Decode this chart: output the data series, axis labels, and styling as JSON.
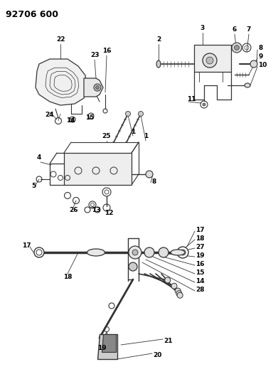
{
  "title": "92706 600",
  "bg_color": "#ffffff",
  "line_color": "#333333",
  "text_color": "#000000",
  "fig_width": 3.91,
  "fig_height": 5.33,
  "dpi": 100,
  "label_fontsize": 6.5,
  "title_fontsize": 9
}
